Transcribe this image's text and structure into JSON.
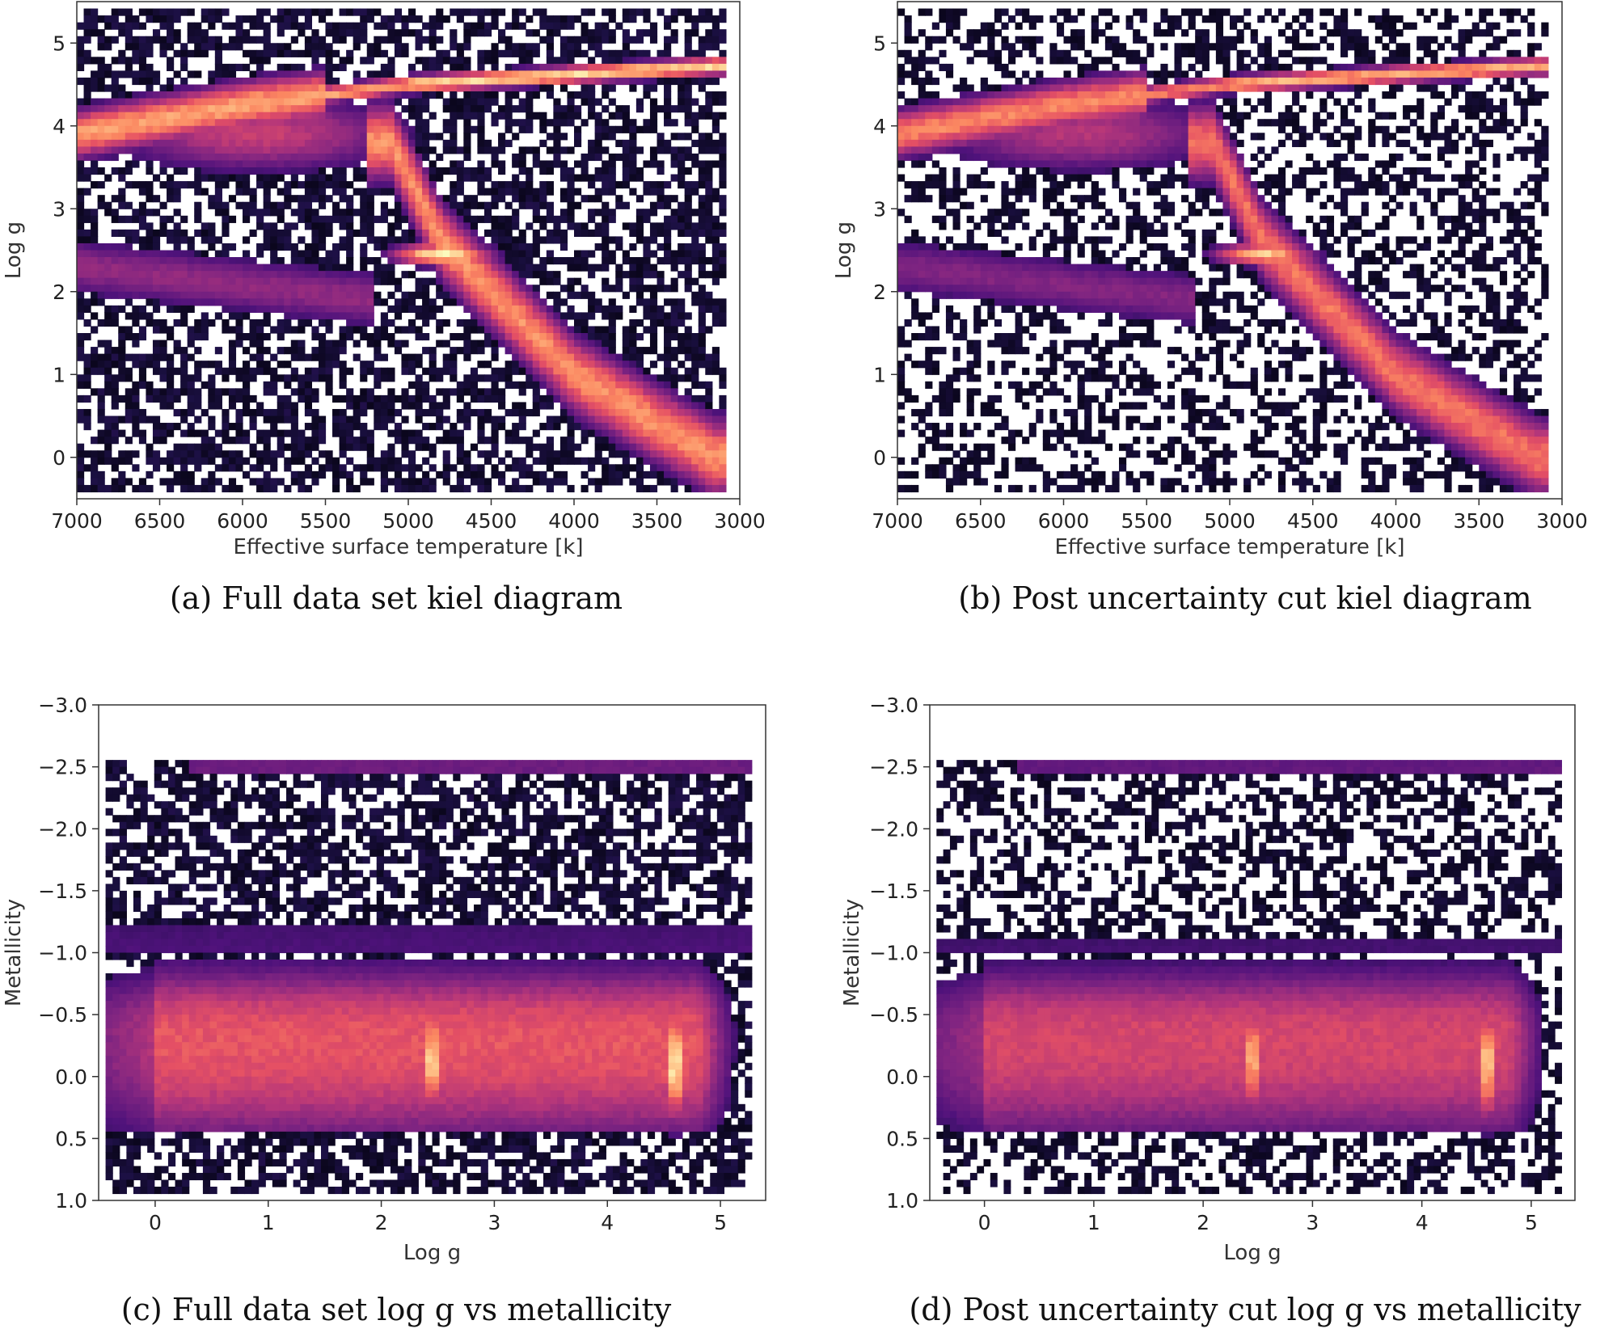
{
  "chart_data": [
    {
      "id": "a",
      "type": "heatmap",
      "kind": "kiel",
      "caption": "(a) Full data set kiel diagram",
      "xlabel": "Effective surface temperature [k]",
      "ylabel": "Log g",
      "xlim": [
        7000,
        3000
      ],
      "ylim": [
        5.5,
        -0.5
      ],
      "xticks": [
        7000,
        6500,
        6000,
        5500,
        5000,
        4500,
        4000,
        3500,
        3000
      ],
      "xtick_labels": [
        "7000",
        "6500",
        "6000",
        "5500",
        "5000",
        "4500",
        "4000",
        "3500",
        "3000"
      ],
      "yticks": [
        0,
        1,
        2,
        3,
        4,
        5
      ],
      "ytick_labels": [
        "0",
        "1",
        "2",
        "3",
        "4",
        "5"
      ],
      "colormap": "magma",
      "cut": false,
      "features": {
        "main_sequence": {
          "teff": [
            7000,
            6000,
            5000,
            4000,
            3150
          ],
          "logg": [
            3.9,
            4.25,
            4.5,
            4.62,
            4.72
          ]
        },
        "giant_branch": {
          "teff": [
            5100,
            4800,
            4000,
            3500,
            3150
          ],
          "logg": [
            3.8,
            2.6,
            1.0,
            0.4,
            0.0
          ]
        },
        "red_clump": {
          "teff": 4800,
          "logg": 2.45
        },
        "horizontal_branch": {
          "teff": [
            7000,
            5200
          ],
          "logg": [
            2.3,
            1.9
          ]
        }
      }
    },
    {
      "id": "b",
      "type": "heatmap",
      "kind": "kiel",
      "caption": "(b) Post uncertainty cut kiel diagram",
      "xlabel": "Effective surface temperature [k]",
      "ylabel": "Log g",
      "xlim": [
        7000,
        3000
      ],
      "ylim": [
        5.5,
        -0.5
      ],
      "xticks": [
        7000,
        6500,
        6000,
        5500,
        5000,
        4500,
        4000,
        3500,
        3000
      ],
      "xtick_labels": [
        "7000",
        "6500",
        "6000",
        "5500",
        "5000",
        "4500",
        "4000",
        "3500",
        "3000"
      ],
      "yticks": [
        0,
        1,
        2,
        3,
        4,
        5
      ],
      "ytick_labels": [
        "0",
        "1",
        "2",
        "3",
        "4",
        "5"
      ],
      "colormap": "magma",
      "cut": true,
      "features": {
        "main_sequence": {
          "teff": [
            7000,
            6000,
            5000,
            4000,
            3150
          ],
          "logg": [
            3.9,
            4.25,
            4.5,
            4.62,
            4.72
          ]
        },
        "giant_branch": {
          "teff": [
            5100,
            4800,
            4000,
            3500,
            3150
          ],
          "logg": [
            3.8,
            2.6,
            1.0,
            0.4,
            0.0
          ]
        },
        "red_clump": {
          "teff": 4800,
          "logg": 2.45
        },
        "horizontal_branch": {
          "teff": [
            7000,
            5200
          ],
          "logg": [
            2.3,
            1.9
          ]
        }
      }
    },
    {
      "id": "c",
      "type": "heatmap",
      "kind": "metallicity",
      "caption": "(c) Full data set log g vs metallicity",
      "xlabel": "Log g",
      "ylabel": "Metallicity",
      "xlim": [
        -0.5,
        5.4
      ],
      "ylim": [
        -3.0,
        1.0
      ],
      "xticks": [
        0,
        1,
        2,
        3,
        4,
        5
      ],
      "xtick_labels": [
        "0",
        "1",
        "2",
        "3",
        "4",
        "5"
      ],
      "yticks": [
        1.0,
        0.5,
        0.0,
        -0.5,
        -1.0,
        -1.5,
        -2.0,
        -2.5,
        -3.0
      ],
      "ytick_labels": [
        "1.0",
        "0.5",
        "0.0",
        "−0.5",
        "−1.0",
        "−1.5",
        "−2.0",
        "−2.5",
        "−3.0"
      ],
      "colormap": "magma",
      "cut": false,
      "features": {
        "red_clump_band": {
          "logg": 2.45,
          "metallicity": [
            -0.6,
            0.3
          ]
        },
        "dwarf_band": {
          "logg": 4.6,
          "metallicity": [
            -0.6,
            0.3
          ]
        },
        "floor": {
          "metallicity": -2.5
        }
      }
    },
    {
      "id": "d",
      "type": "heatmap",
      "kind": "metallicity",
      "caption": "(d) Post uncertainty cut log g vs metallicity",
      "xlabel": "Log g",
      "ylabel": "Metallicity",
      "xlim": [
        -0.5,
        5.4
      ],
      "ylim": [
        -3.0,
        1.0
      ],
      "xticks": [
        0,
        1,
        2,
        3,
        4,
        5
      ],
      "xtick_labels": [
        "0",
        "1",
        "2",
        "3",
        "4",
        "5"
      ],
      "yticks": [
        1.0,
        0.5,
        0.0,
        -0.5,
        -1.0,
        -1.5,
        -2.0,
        -2.5,
        -3.0
      ],
      "ytick_labels": [
        "1.0",
        "0.5",
        "0.0",
        "−0.5",
        "−1.0",
        "−1.5",
        "−2.0",
        "−2.5",
        "−3.0"
      ],
      "colormap": "magma",
      "cut": true,
      "features": {
        "red_clump_band": {
          "logg": 2.45,
          "metallicity": [
            -0.6,
            0.3
          ]
        },
        "dwarf_band": {
          "logg": 4.6,
          "metallicity": [
            -0.6,
            0.3
          ]
        },
        "floor": {
          "metallicity": -2.5
        }
      }
    }
  ]
}
